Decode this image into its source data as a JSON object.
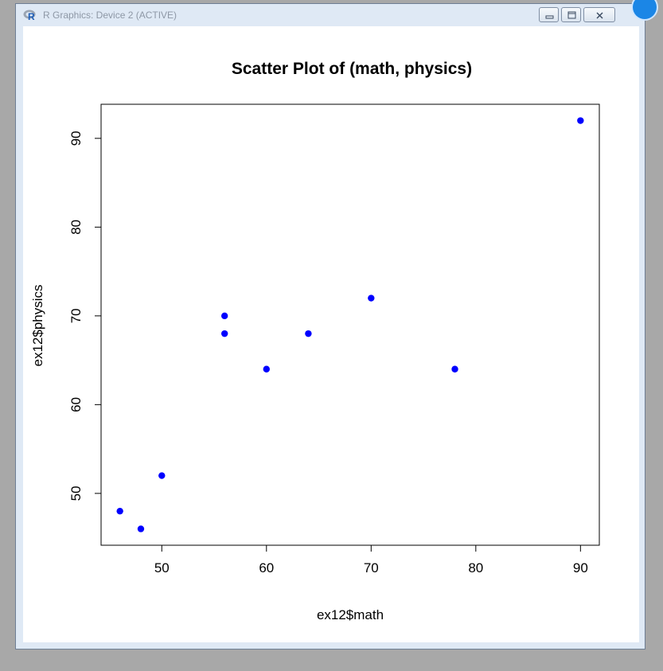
{
  "window": {
    "title": "R Graphics: Device 2 (ACTIVE)",
    "icon": "r-logo-icon",
    "controls": [
      "minimize-icon",
      "maximize-icon",
      "close-icon"
    ]
  },
  "colors": {
    "point": "#0000ff",
    "window_frame": "#dfe9f5",
    "desktop": "#a8a8a8"
  },
  "chart_data": {
    "type": "scatter",
    "title": "Scatter Plot of (math, physics)",
    "xlabel": "ex12$math",
    "ylabel": "ex12$physics",
    "xlim": [
      44.2,
      91.8
    ],
    "ylim": [
      44.16,
      93.84
    ],
    "xticks": [
      50,
      60,
      70,
      80,
      90
    ],
    "yticks": [
      50,
      60,
      70,
      80,
      90
    ],
    "grid": false,
    "points": [
      {
        "x": 46,
        "y": 48
      },
      {
        "x": 48,
        "y": 46
      },
      {
        "x": 50,
        "y": 52
      },
      {
        "x": 56,
        "y": 70
      },
      {
        "x": 56,
        "y": 68
      },
      {
        "x": 60,
        "y": 64
      },
      {
        "x": 64,
        "y": 68
      },
      {
        "x": 70,
        "y": 72
      },
      {
        "x": 78,
        "y": 64
      },
      {
        "x": 90,
        "y": 92
      }
    ]
  }
}
